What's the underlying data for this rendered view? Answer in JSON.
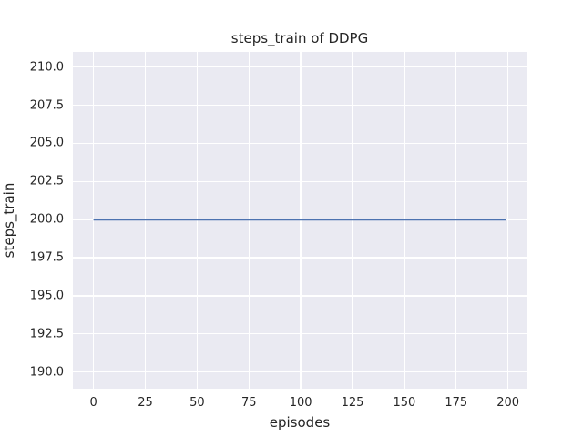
{
  "chart_data": {
    "type": "line",
    "title": "steps_train of DDPG",
    "xlabel": "episodes",
    "ylabel": "steps_train",
    "xlim": [
      -9.95,
      208.95
    ],
    "ylim": [
      188.9,
      211.0
    ],
    "xticks": [
      0,
      25,
      50,
      75,
      100,
      125,
      150,
      175,
      200
    ],
    "xtick_labels": [
      "0",
      "25",
      "50",
      "75",
      "100",
      "125",
      "150",
      "175",
      "200"
    ],
    "yticks": [
      190.0,
      192.5,
      195.0,
      197.5,
      200.0,
      202.5,
      205.0,
      207.5,
      210.0
    ],
    "ytick_labels": [
      "190.0",
      "192.5",
      "195.0",
      "197.5",
      "200.0",
      "202.5",
      "205.0",
      "207.5",
      "210.0"
    ],
    "grid": true,
    "legend": "none",
    "style": {
      "plot_background": "#EAEAF2",
      "grid_color": "#FFFFFF",
      "text_color": "#262626",
      "figure_background": "#FFFFFF"
    },
    "series": [
      {
        "name": "steps_train",
        "color": "#4C72B0",
        "x": [
          0,
          199
        ],
        "y": [
          200,
          200
        ],
        "constant_value": 200
      }
    ]
  }
}
